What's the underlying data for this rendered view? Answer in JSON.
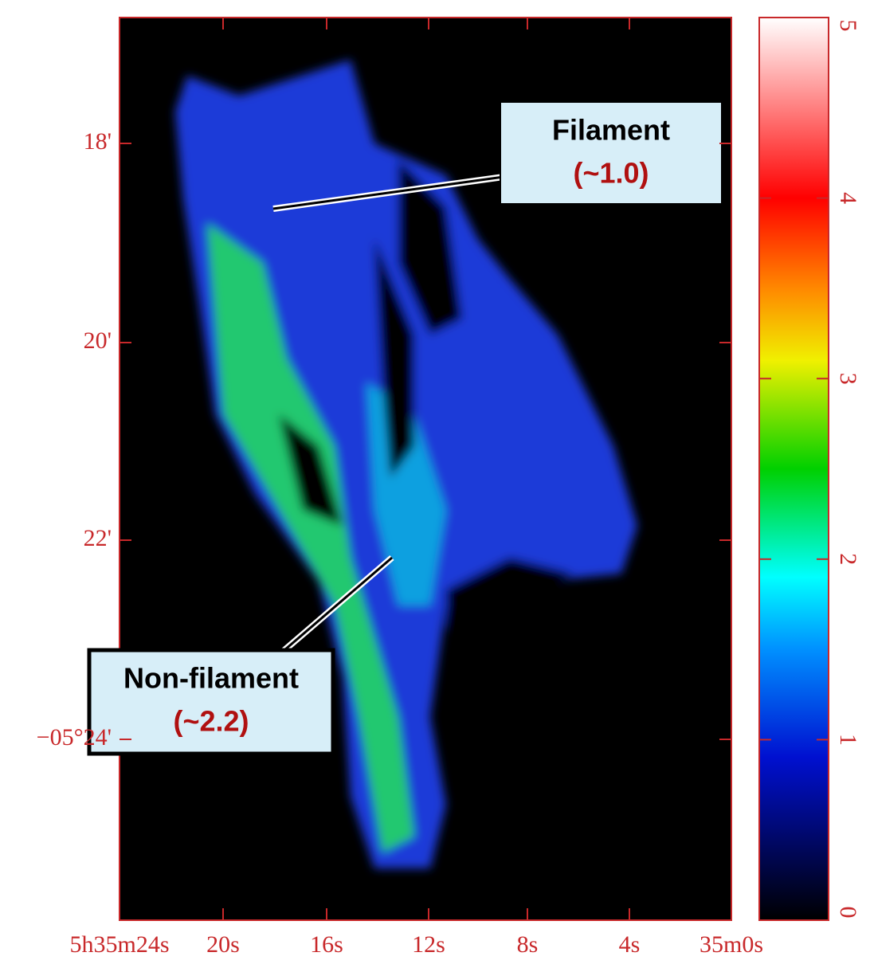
{
  "map": {
    "x_tick_labels": [
      "5h35m24s",
      "20s",
      "16s",
      "12s",
      "8s",
      "4s",
      "35m0s"
    ],
    "y_tick_labels": [
      "18'",
      "20'",
      "22'",
      "−05°24'"
    ],
    "colorbar": {
      "lim": [
        0,
        5
      ],
      "ticks": [
        0,
        1,
        2,
        3,
        4,
        5
      ]
    },
    "annotations": [
      {
        "title": "Filament",
        "value": "(~1.0)"
      },
      {
        "title": "Non-filament",
        "value": "(~2.2)"
      }
    ]
  }
}
